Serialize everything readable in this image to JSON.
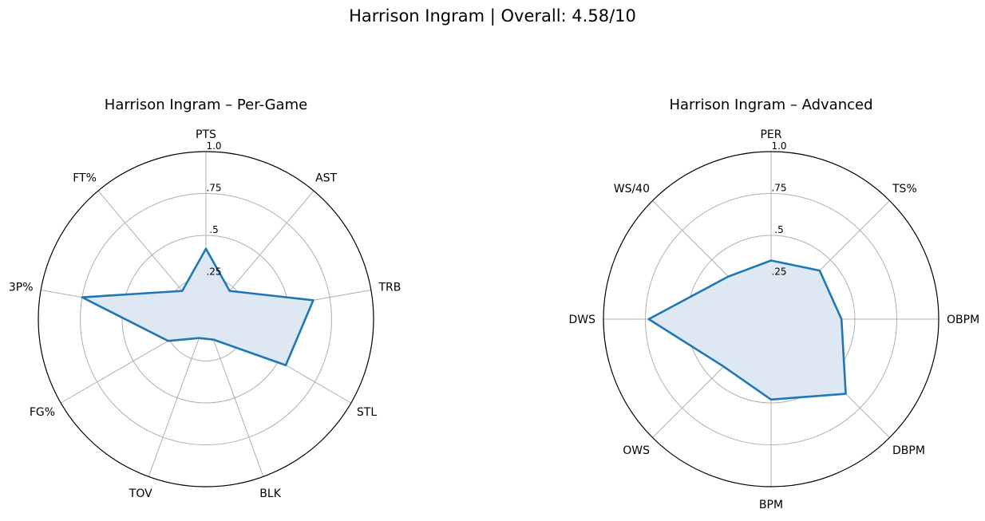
{
  "figure": {
    "title": "Harrison Ingram | Overall: 4.58/10"
  },
  "chart_data": [
    {
      "type": "radar",
      "title": "Harrison Ingram – Per-Game",
      "categories": [
        "PTS",
        "AST",
        "TRB",
        "STL",
        "BLK",
        "TOV",
        "FG%",
        "3P%",
        "FT%"
      ],
      "values": [
        0.42,
        0.22,
        0.65,
        0.55,
        0.13,
        0.12,
        0.26,
        0.75,
        0.22
      ],
      "rlim": [
        0,
        1
      ],
      "rticks": [
        ".25",
        ".5",
        ".75",
        "1.0"
      ],
      "color": "#1f77b4",
      "fill": "#dde8f3",
      "grid": true
    },
    {
      "type": "radar",
      "title": "Harrison Ingram – Advanced",
      "categories": [
        "PER",
        "TS%",
        "OBPM",
        "DBPM",
        "BPM",
        "OWS",
        "DWS",
        "WS/40"
      ],
      "values": [
        0.35,
        0.41,
        0.42,
        0.63,
        0.48,
        0.4,
        0.73,
        0.36
      ],
      "rlim": [
        0,
        1
      ],
      "rticks": [
        ".25",
        ".5",
        ".75",
        "1.0"
      ],
      "color": "#1f77b4",
      "fill": "#dde8f3",
      "grid": true
    }
  ]
}
